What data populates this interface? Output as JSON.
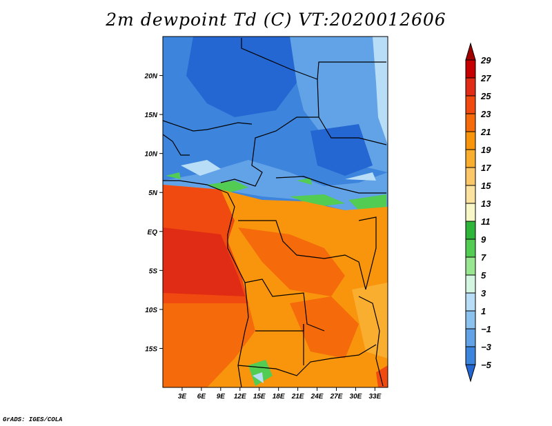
{
  "title": "2m dewpoint Td (C) VT:2020012606",
  "footer": "GrADS: IGES/COLA",
  "map": {
    "lon_range": [
      0,
      35
    ],
    "lat_range": [
      -20,
      25
    ],
    "lat_ticks": [
      "20N",
      "15N",
      "10N",
      "5N",
      "EQ",
      "5S",
      "10S",
      "15S"
    ],
    "lon_ticks": [
      "3E",
      "6E",
      "9E",
      "12E",
      "15E",
      "18E",
      "21E",
      "24E",
      "27E",
      "30E",
      "33E"
    ]
  },
  "colorbar": {
    "labels": [
      "29",
      "27",
      "25",
      "23",
      "21",
      "19",
      "17",
      "15",
      "13",
      "11",
      "9",
      "7",
      "5",
      "3",
      "1",
      "−1",
      "−3",
      "−5"
    ],
    "colors": [
      "#a00000",
      "#c40000",
      "#e02c14",
      "#f04a10",
      "#f56a0a",
      "#f8950c",
      "#faae30",
      "#fbc768",
      "#fbe29e",
      "#f8f7c8",
      "#2eb53a",
      "#52cc52",
      "#98e690",
      "#d4f6e0",
      "#b8ddf6",
      "#8cc2ee",
      "#62a2e6",
      "#3c84dc",
      "#2466d2"
    ]
  },
  "field_colors": {
    "sahara_deep": "#2466d2",
    "sahara": "#3c84dc",
    "dry_light": "#62a2e6",
    "pale": "#b8ddf6",
    "green": "#52cc52",
    "humid_red": "#e02c14",
    "humid": "#f04a10",
    "orange": "#f56a0a",
    "orange_light": "#f8950c",
    "yellow_orange": "#faae30"
  }
}
